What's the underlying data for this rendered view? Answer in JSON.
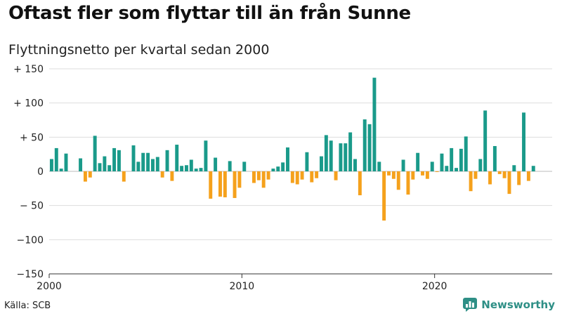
{
  "title": "Oftast fler som flyttar till än från Sunne",
  "subtitle": "Flyttningsnetto per kvartal sedan 2000",
  "source": "Källa: SCB",
  "brand": "Newsworthy",
  "colors": {
    "positive": "#1a9a8a",
    "negative": "#f5a11c",
    "brand": "#2e8f86",
    "grid": "#dddddd"
  },
  "chart_data": {
    "type": "bar",
    "title": "",
    "xlabel": "",
    "ylabel": "",
    "start_year": 2000,
    "x_ticks": [
      2000,
      2010,
      2020
    ],
    "x_tick_labels": [
      "2000",
      "2010",
      "2020"
    ],
    "xlim": [
      2000,
      2026.1
    ],
    "ylim": [
      -150,
      150
    ],
    "y_ticks": [
      150,
      100,
      50,
      0,
      -50,
      -100,
      -150
    ],
    "y_tick_labels": [
      "+ 150",
      "+ 100",
      "+  50",
      "0",
      "− 50",
      "−100",
      "−150"
    ],
    "grid": true,
    "values": [
      18,
      34,
      4,
      26,
      0,
      0,
      19,
      -15,
      -9,
      52,
      12,
      22,
      9,
      34,
      31,
      -15,
      0,
      38,
      14,
      27,
      27,
      18,
      21,
      -9,
      31,
      -14,
      39,
      8,
      9,
      17,
      4,
      5,
      45,
      -40,
      20,
      -37,
      -38,
      15,
      -39,
      -24,
      14,
      0,
      -17,
      -13,
      -24,
      -12,
      4,
      7,
      13,
      35,
      -17,
      -19,
      -12,
      28,
      -16,
      -10,
      22,
      53,
      45,
      -13,
      41,
      41,
      57,
      18,
      -35,
      76,
      69,
      137,
      14,
      -72,
      -6,
      -11,
      -27,
      17,
      -34,
      -12,
      27,
      -6,
      -11,
      14,
      -1,
      26,
      8,
      34,
      5,
      33,
      51,
      -29,
      -11,
      18,
      89,
      -19,
      37,
      -4,
      -10,
      -33,
      9,
      -20,
      86,
      -14,
      8
    ]
  }
}
